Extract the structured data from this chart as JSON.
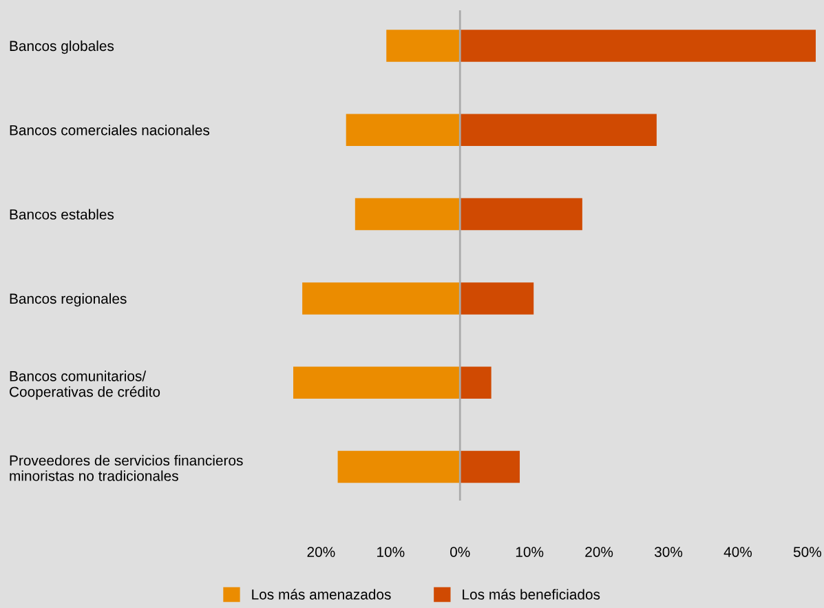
{
  "chart_data": {
    "type": "bar",
    "orientation": "horizontal",
    "stacked": true,
    "categories": [
      "Bancos globales",
      "Bancos comerciales nacionales",
      "Bancos estables",
      "Bancos regionales",
      "Bancos comunitarios/\nCooperativas de crédito",
      "Proveedores de servicios financieros\nminoristas no tradicionales"
    ],
    "series": [
      {
        "name": "Los más amenazados",
        "color": "#eb8c00",
        "values": [
          -10.6,
          -16.4,
          -15.1,
          -22.7,
          -24.0,
          -17.6
        ]
      },
      {
        "name": "Los más beneficiados",
        "color": "#d04a02",
        "values": [
          51.2,
          28.3,
          17.6,
          10.6,
          4.5,
          8.6
        ]
      }
    ],
    "xticks": [
      {
        "value": -20,
        "label": "20%"
      },
      {
        "value": -10,
        "label": "10%"
      },
      {
        "value": 0,
        "label": "0%"
      },
      {
        "value": 10,
        "label": "10%"
      },
      {
        "value": 20,
        "label": "20%"
      },
      {
        "value": 30,
        "label": "30%"
      },
      {
        "value": 40,
        "label": "40%"
      },
      {
        "value": 50,
        "label": "50%"
      }
    ],
    "xlim": [
      -24.0,
      51.2
    ],
    "ref_lines": [
      {
        "axis": "x",
        "value": 0,
        "color": "#aaaaaa"
      }
    ],
    "grid": false,
    "legend": "bottom"
  }
}
